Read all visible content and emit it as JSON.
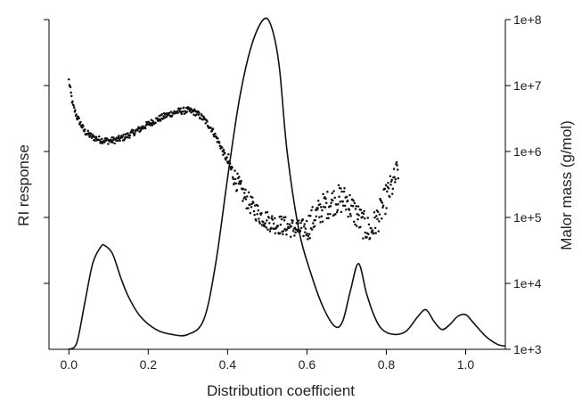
{
  "chart_data": {
    "type": "line",
    "xlabel": "Distribution coefficient",
    "ylabel_left": "RI response",
    "ylabel_right": "Malor mass (g/mol)",
    "xlim": [
      -0.05,
      1.1
    ],
    "x_ticks": [
      0.0,
      0.2,
      0.4,
      0.6,
      0.8,
      1.0
    ],
    "x_tick_labels": [
      "0.0",
      "0.2",
      "0.4",
      "0.6",
      "0.8",
      "1.0"
    ],
    "y_left_range": [
      0,
      1
    ],
    "y_left_ticks": [
      0.2,
      0.4,
      0.6,
      0.8,
      1.0
    ],
    "y_right_scale": "log",
    "y_right_range": [
      1000,
      100000000
    ],
    "y_right_ticks": [
      1000,
      10000,
      100000,
      1000000,
      10000000,
      100000000
    ],
    "y_right_tick_labels": [
      "1e+3",
      "1e+4",
      "1e+5",
      "1e+6",
      "1e+7",
      "1e+8"
    ],
    "series": [
      {
        "kind": "line",
        "axis": "left",
        "x": [
          0.0,
          0.02,
          0.04,
          0.06,
          0.08,
          0.09,
          0.11,
          0.13,
          0.15,
          0.18,
          0.22,
          0.26,
          0.3,
          0.34,
          0.37,
          0.4,
          0.43,
          0.46,
          0.49,
          0.51,
          0.53,
          0.55,
          0.58,
          0.61,
          0.64,
          0.67,
          0.69,
          0.71,
          0.73,
          0.75,
          0.77,
          0.79,
          0.82,
          0.85,
          0.88,
          0.9,
          0.92,
          0.94,
          0.96,
          0.98,
          1.0,
          1.02,
          1.05,
          1.08,
          1.1
        ],
        "y": [
          0.0,
          0.02,
          0.14,
          0.26,
          0.31,
          0.315,
          0.29,
          0.22,
          0.16,
          0.1,
          0.06,
          0.045,
          0.045,
          0.09,
          0.26,
          0.52,
          0.76,
          0.92,
          1.0,
          0.98,
          0.86,
          0.6,
          0.36,
          0.23,
          0.13,
          0.07,
          0.085,
          0.18,
          0.26,
          0.17,
          0.1,
          0.06,
          0.045,
          0.055,
          0.1,
          0.12,
          0.085,
          0.06,
          0.075,
          0.1,
          0.105,
          0.08,
          0.04,
          0.015,
          0.01
        ]
      },
      {
        "kind": "scatter",
        "axis": "right",
        "x": [
          0.0,
          0.01,
          0.02,
          0.04,
          0.06,
          0.08,
          0.1,
          0.12,
          0.14,
          0.16,
          0.18,
          0.2,
          0.22,
          0.24,
          0.26,
          0.28,
          0.3,
          0.32,
          0.34,
          0.36,
          0.38,
          0.4,
          0.42,
          0.44,
          0.46,
          0.48,
          0.5,
          0.52,
          0.54,
          0.56,
          0.58,
          0.6,
          0.62,
          0.64,
          0.66,
          0.68,
          0.7,
          0.72,
          0.74,
          0.76,
          0.78,
          0.8,
          0.82,
          0.83
        ],
        "y": [
          12000000,
          5000000,
          3400000,
          2000000,
          1650000,
          1500000,
          1450000,
          1500000,
          1650000,
          1900000,
          2200000,
          2600000,
          3000000,
          3400000,
          3800000,
          4100000,
          4200000,
          3900000,
          3100000,
          2200000,
          1300000,
          700000,
          380000,
          220000,
          150000,
          110000,
          90000,
          80000,
          75000,
          70000,
          65000,
          70000,
          100000,
          140000,
          170000,
          190000,
          180000,
          120000,
          80000,
          60000,
          100000,
          200000,
          350000,
          550000
        ]
      }
    ]
  }
}
